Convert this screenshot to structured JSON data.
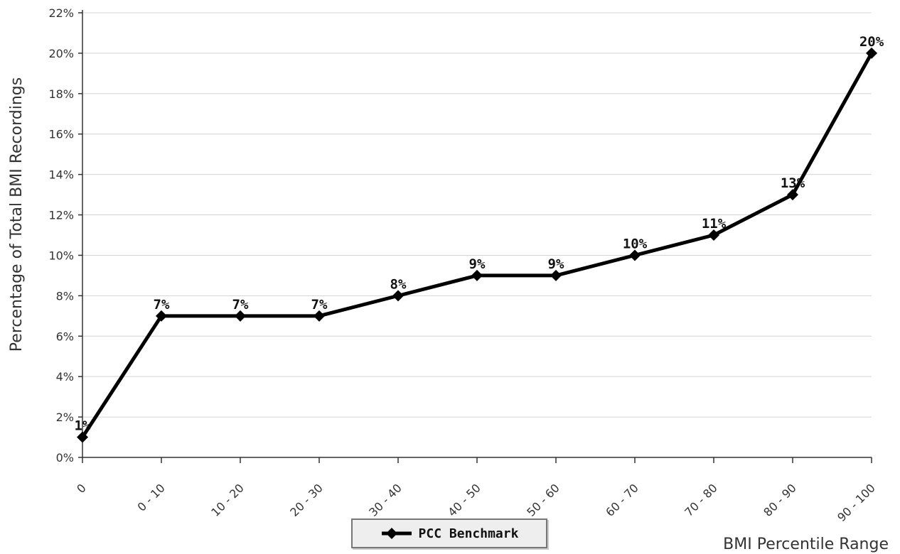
{
  "chart_data": {
    "type": "line",
    "title": "",
    "xlabel": "BMI Percentile Range",
    "ylabel": "Percentage of Total BMI Recordings",
    "categories": [
      "0",
      "0 - 10",
      "10 - 20",
      "20 - 30",
      "30 - 40",
      "40 - 50",
      "50 - 60",
      "60 - 70",
      "70 - 80",
      "80 - 90",
      "90 - 100"
    ],
    "series": [
      {
        "name": "PCC Benchmark",
        "values": [
          1,
          7,
          7,
          7,
          8,
          9,
          9,
          10,
          11,
          13,
          20
        ],
        "data_labels": [
          "1%",
          "7%",
          "7%",
          "7%",
          "8%",
          "9%",
          "9%",
          "10%",
          "11%",
          "13%",
          "20%"
        ],
        "color": "#000000",
        "marker": "diamond"
      }
    ],
    "ylim": [
      0,
      22
    ],
    "yticks": [
      "0%",
      "2%",
      "4%",
      "6%",
      "8%",
      "10%",
      "12%",
      "14%",
      "16%",
      "18%",
      "20%",
      "22%"
    ],
    "grid": true,
    "legend_position": "bottom-left"
  }
}
